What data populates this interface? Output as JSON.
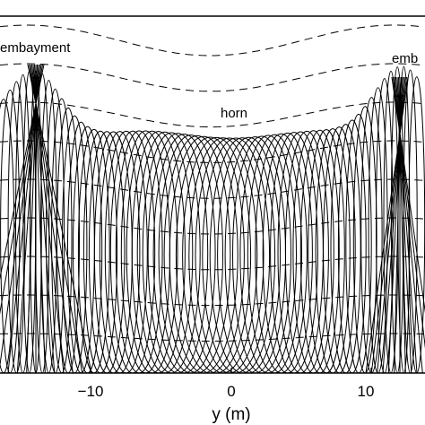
{
  "figure": {
    "labels": {
      "embayment_left": "embayment",
      "embayment_right": "emb",
      "horn": "horn"
    },
    "axis": {
      "xlabel": "y (m)",
      "ticks": [
        "−10",
        "0",
        "10"
      ]
    },
    "colors": {
      "line": "#000000",
      "background": "#ffffff"
    }
  }
}
